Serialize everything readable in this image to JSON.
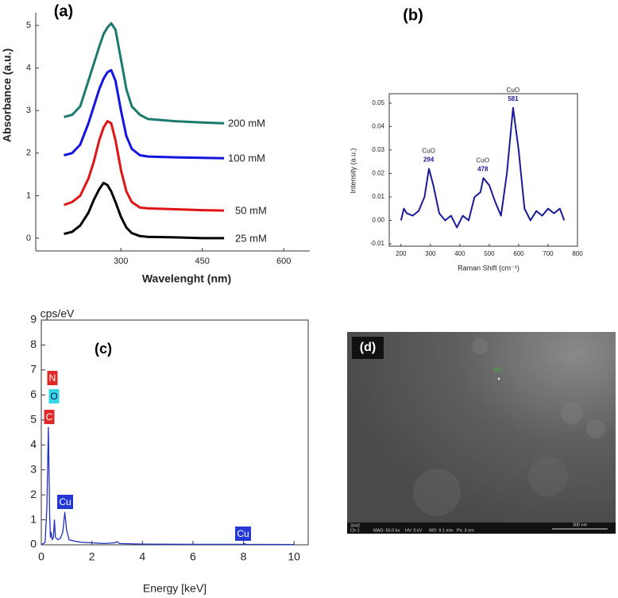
{
  "chart_data": [
    {
      "type": "line",
      "title": "(a)",
      "x_label": "Wavelenght (nm)",
      "y_label": "Absorbance (a.u.)",
      "x": [
        195,
        210,
        225,
        240,
        250,
        260,
        268,
        275,
        282,
        290,
        300,
        310,
        320,
        335,
        350,
        400,
        450,
        490
      ],
      "series": [
        {
          "name": "25 mM",
          "color": "#000000",
          "values": [
            0.1,
            0.15,
            0.3,
            0.6,
            0.9,
            1.15,
            1.3,
            1.25,
            1.1,
            0.85,
            0.5,
            0.25,
            0.12,
            0.05,
            0.03,
            0.02,
            0.0,
            0.0
          ]
        },
        {
          "name": "50 mM",
          "color": "#e01414",
          "values": [
            0.78,
            0.85,
            1.0,
            1.4,
            1.8,
            2.3,
            2.6,
            2.75,
            2.7,
            2.3,
            1.6,
            1.1,
            0.85,
            0.72,
            0.7,
            0.68,
            0.66,
            0.65
          ]
        },
        {
          "name": "100 mM",
          "color": "#1414e0",
          "values": [
            1.95,
            2.0,
            2.2,
            2.7,
            3.1,
            3.5,
            3.75,
            3.9,
            3.95,
            3.7,
            3.0,
            2.4,
            2.1,
            1.95,
            1.92,
            1.9,
            1.89,
            1.88
          ]
        },
        {
          "name": "200 mM",
          "color": "#1b7a6e",
          "values": [
            2.85,
            2.9,
            3.1,
            3.7,
            4.1,
            4.5,
            4.8,
            4.95,
            5.05,
            4.9,
            4.2,
            3.5,
            3.1,
            2.9,
            2.8,
            2.75,
            2.72,
            2.7
          ]
        }
      ],
      "xlim": [
        143,
        648
      ],
      "ylim": [
        -0.3,
        5.3
      ],
      "xticks": [
        300,
        450,
        600
      ],
      "yticks": [
        0,
        1,
        2,
        3,
        4,
        5
      ]
    },
    {
      "type": "line",
      "title": "(b)",
      "x_label": "Raman Shift (cm⁻¹)",
      "y_label": "Intensity (a.u.)",
      "x": [
        200,
        210,
        220,
        240,
        260,
        280,
        295,
        310,
        330,
        350,
        370,
        390,
        410,
        430,
        450,
        470,
        480,
        500,
        520,
        540,
        560,
        581,
        600,
        620,
        640,
        660,
        680,
        700,
        720,
        740,
        755
      ],
      "series": [
        {
          "name": "Raman",
          "color": "#1a1a99",
          "values": [
            0.0,
            0.005,
            0.003,
            0.002,
            0.004,
            0.01,
            0.022,
            0.015,
            0.003,
            0.0,
            0.002,
            -0.003,
            0.002,
            0.0,
            0.01,
            0.012,
            0.018,
            0.015,
            0.008,
            0.002,
            0.02,
            0.048,
            0.03,
            0.005,
            0.0,
            0.004,
            0.002,
            0.005,
            0.003,
            0.005,
            0.0
          ]
        }
      ],
      "annotations": [
        {
          "label": "CuO",
          "x": 294
        },
        {
          "label": "CuO",
          "x": 478
        },
        {
          "label": "CuO",
          "x": 581
        }
      ],
      "xlim": [
        160,
        800
      ],
      "ylim": [
        -0.011,
        0.054
      ],
      "xticks": [
        200,
        300,
        400,
        500,
        600,
        700,
        800
      ],
      "yticks": [
        -0.01,
        {
          "value": 0,
          "label": "0.00"
        },
        0.01,
        0.02,
        0.03,
        0.04,
        0.05
      ]
    },
    {
      "type": "line",
      "title": "(c)",
      "x_label": "Energy [keV]",
      "y_label": "cps/eV",
      "x": [
        0,
        0.15,
        0.22,
        0.28,
        0.33,
        0.36,
        0.39,
        0.43,
        0.48,
        0.52,
        0.56,
        0.65,
        0.75,
        0.85,
        0.93,
        1.0,
        1.1,
        1.3,
        1.6,
        2.0,
        2.5,
        2.9,
        3.0,
        3.1,
        4.0,
        6.0,
        8.0,
        8.04,
        8.1,
        10.0
      ],
      "series": [
        {
          "name": "EDS",
          "color": "#2030c0",
          "values": [
            0,
            0.1,
            1.5,
            4.7,
            1.2,
            0.3,
            0.5,
            0.2,
            0.3,
            1.0,
            0.3,
            0.2,
            0.25,
            0.5,
            1.3,
            0.6,
            0.2,
            0.15,
            0.1,
            0.08,
            0.05,
            0.08,
            0.12,
            0.05,
            0.03,
            0.02,
            0.02,
            0.05,
            0.02,
            0.01
          ]
        }
      ],
      "peak_labels": [
        {
          "text": "N",
          "color": "#e02828"
        },
        {
          "text": "O",
          "color": "#30d8e8"
        },
        {
          "text": "C",
          "color": "#e02828"
        },
        {
          "text": "Cu",
          "color": "#2438d8"
        },
        {
          "text": "Cu",
          "color": "#2438d8"
        }
      ],
      "xlim": [
        0,
        10.56
      ],
      "ylim": [
        0,
        9
      ],
      "xticks": [
        0,
        2,
        4,
        6,
        8,
        10
      ],
      "yticks": [
        0,
        1,
        2,
        3,
        4,
        5,
        6,
        7,
        8,
        9
      ]
    }
  ],
  "image_panel": {
    "label": "(d)",
    "marker": "+0.1",
    "info": [
      "3342",
      "Ch 1",
      "MAG: 50.0 kx",
      "HV: 5 kV",
      "WD: 9.1 mm",
      "Px: 3 nm"
    ],
    "scale_bar": "300 nm"
  }
}
